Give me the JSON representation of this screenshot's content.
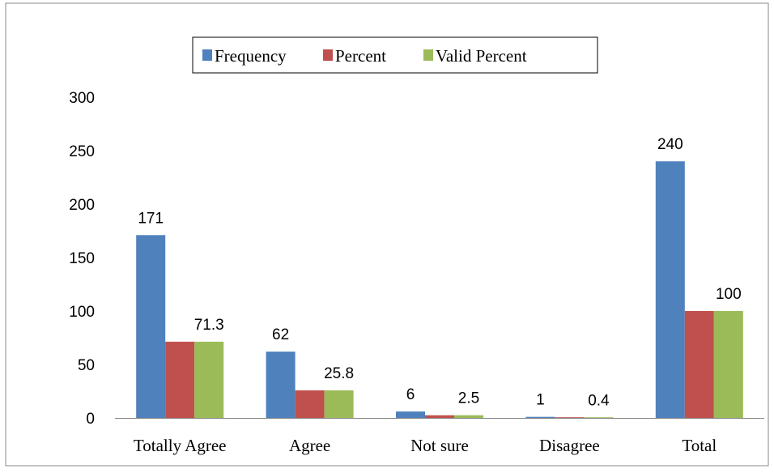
{
  "chart_data": {
    "type": "bar",
    "categories": [
      "Totally Agree",
      "Agree",
      "Not sure",
      "Disagree",
      "Total"
    ],
    "series": [
      {
        "name": "Frequency",
        "color": "#4F81BD",
        "values": [
          171,
          62,
          6,
          1,
          240
        ]
      },
      {
        "name": "Percent",
        "color": "#C0504D",
        "values": [
          71.3,
          25.8,
          2.5,
          0.4,
          100
        ]
      },
      {
        "name": "Valid Percent",
        "color": "#9BBB59",
        "values": [
          71.3,
          25.8,
          2.5,
          0.4,
          100
        ]
      }
    ],
    "data_labels": [
      {
        "category": 0,
        "series": 0,
        "text": "171"
      },
      {
        "category": 0,
        "series": 2,
        "text": "71.3"
      },
      {
        "category": 1,
        "series": 0,
        "text": "62"
      },
      {
        "category": 1,
        "series": 2,
        "text": "25.8"
      },
      {
        "category": 2,
        "series": 0,
        "text": "6"
      },
      {
        "category": 2,
        "series": 2,
        "text": "2.5"
      },
      {
        "category": 3,
        "series": 0,
        "text": "1"
      },
      {
        "category": 3,
        "series": 2,
        "text": "0.4"
      },
      {
        "category": 4,
        "series": 0,
        "text": "240"
      },
      {
        "category": 4,
        "series": 2,
        "text": "100"
      }
    ],
    "yticks": [
      0,
      50,
      100,
      150,
      200,
      250,
      300
    ],
    "ylim": [
      0,
      300
    ],
    "grid": false,
    "legend_position": "top-center",
    "title": "",
    "xlabel": "",
    "ylabel": ""
  }
}
